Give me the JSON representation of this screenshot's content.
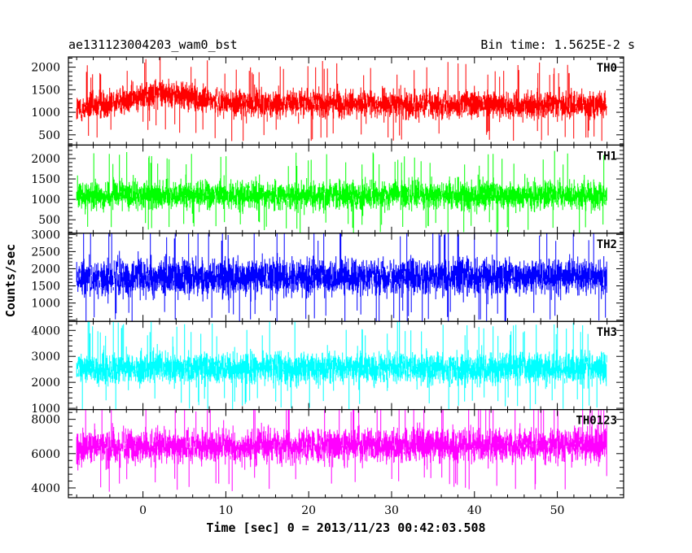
{
  "header": {
    "left_title": "ae131123004203_wam0_bst",
    "right_title": "Bin time: 1.5625E-2 s"
  },
  "chart_data": {
    "type": "line",
    "title": "ae131123004203_wam0_bst",
    "subtitle": "Bin time: 1.5625E-2 s",
    "xlabel": "Time [sec] 0 = 2013/11/23 00:42:03.508",
    "ylabel": "Counts/sec",
    "xlim": [
      -9,
      58
    ],
    "x_ticks": [
      0,
      10,
      20,
      30,
      40,
      50
    ],
    "x_start": -8,
    "x_end": 56,
    "bin_time": 0.015625,
    "grid": false,
    "panels": [
      {
        "name": "TH0",
        "color": "#ff0000",
        "ylim": [
          300,
          2200
        ],
        "y_ticks": [
          500,
          1000,
          1500,
          2000
        ],
        "mean": 1150,
        "spread": 280,
        "envelope": [
          [
            -8,
            1050
          ],
          [
            0,
            1350
          ],
          [
            2,
            1450
          ],
          [
            10,
            1200
          ],
          [
            30,
            1180
          ],
          [
            56,
            1160
          ]
        ]
      },
      {
        "name": "TH1",
        "color": "#00ff00",
        "ylim": [
          200,
          2300
        ],
        "y_ticks": [
          500,
          1000,
          1500,
          2000
        ],
        "mean": 1100,
        "spread": 320,
        "envelope": [
          [
            -8,
            1100
          ],
          [
            56,
            1100
          ]
        ]
      },
      {
        "name": "TH2",
        "color": "#0000ff",
        "ylim": [
          500,
          3000
        ],
        "y_ticks": [
          1000,
          1500,
          2000,
          2500,
          3000
        ],
        "mean": 1750,
        "spread": 480,
        "envelope": [
          [
            -8,
            1750
          ],
          [
            56,
            1750
          ]
        ]
      },
      {
        "name": "TH3",
        "color": "#00ffff",
        "ylim": [
          1000,
          4300
        ],
        "y_ticks": [
          1000,
          2000,
          3000,
          4000
        ],
        "mean": 2550,
        "spread": 550,
        "envelope": [
          [
            -8,
            2550
          ],
          [
            56,
            2550
          ]
        ]
      },
      {
        "name": "TH0123",
        "color": "#ff00ff",
        "ylim": [
          3500,
          8500
        ],
        "y_ticks": [
          4000,
          6000,
          8000
        ],
        "mean": 6500,
        "spread": 900,
        "envelope": [
          [
            -8,
            6400
          ],
          [
            56,
            6500
          ]
        ]
      }
    ]
  }
}
